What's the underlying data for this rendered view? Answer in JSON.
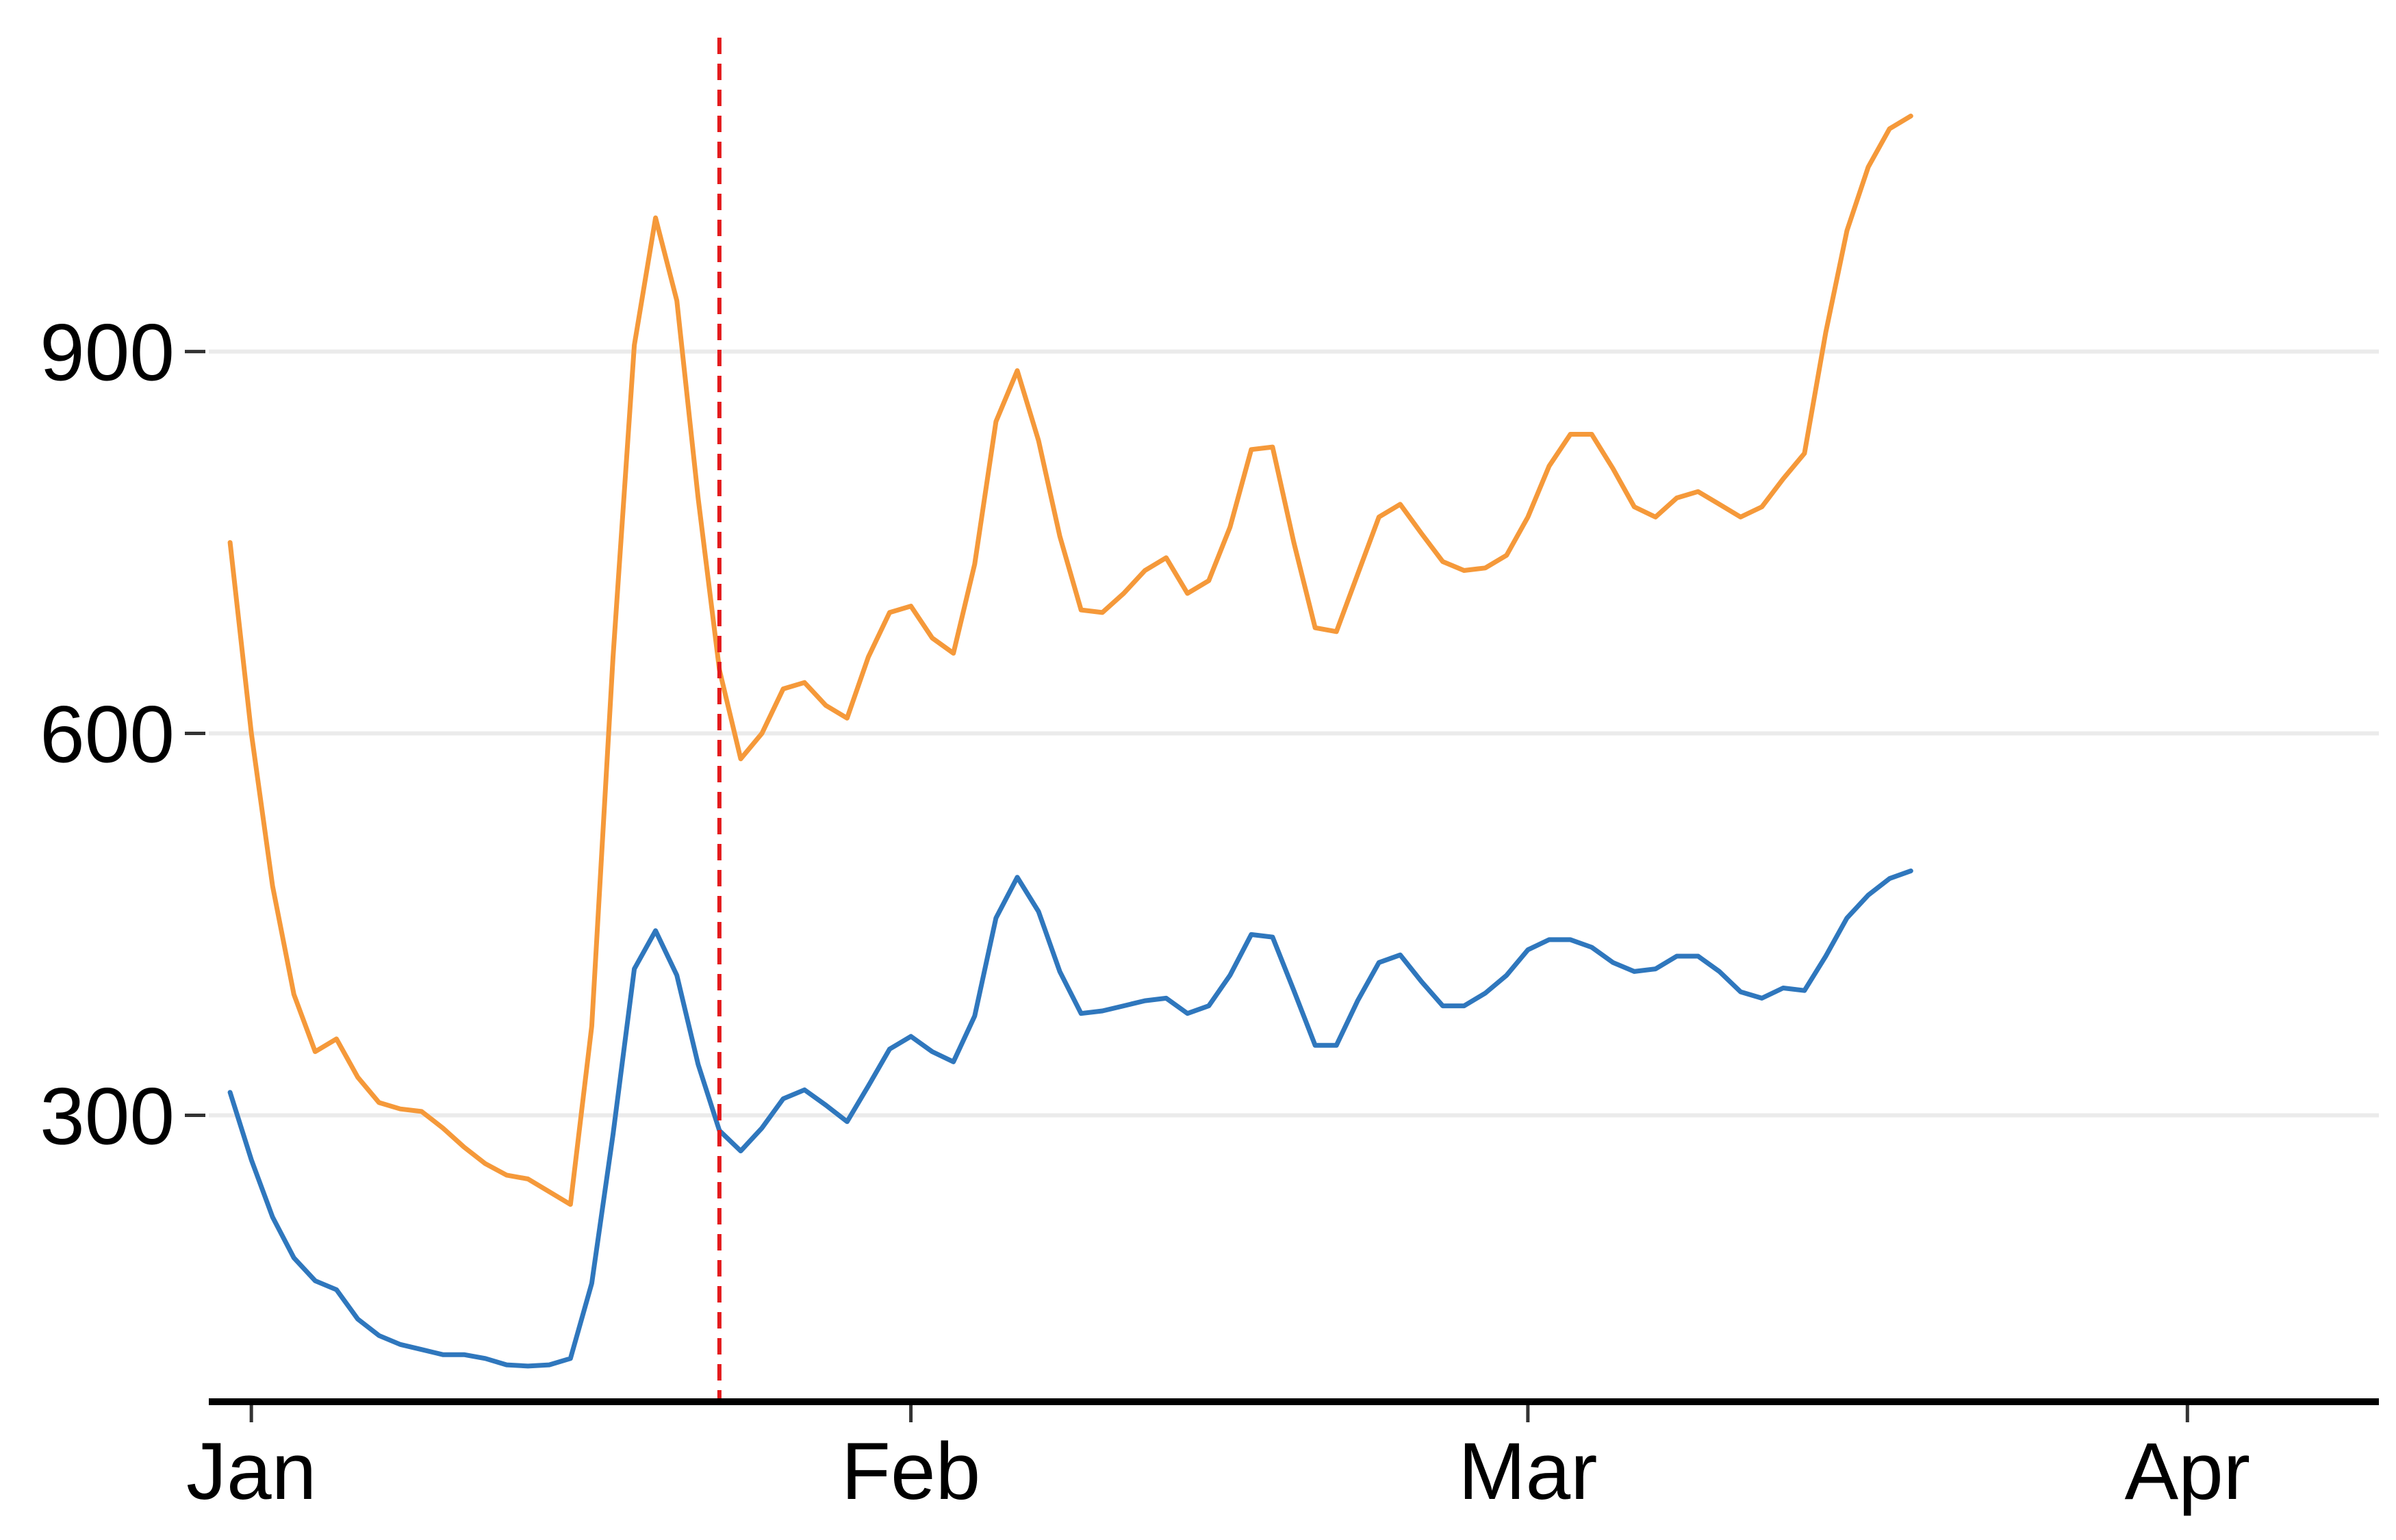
{
  "chart_data": {
    "type": "line",
    "title": "",
    "xlabel": "",
    "ylabel": "",
    "ylim": [
      75,
      1160
    ],
    "yticks": [
      300,
      600,
      900
    ],
    "xticks": [
      {
        "label": "Jan",
        "date": "2020-01-01"
      },
      {
        "label": "Feb",
        "date": "2020-02-01"
      },
      {
        "label": "Mar",
        "date": "2020-03-01"
      },
      {
        "label": "Apr",
        "date": "2020-04-01"
      }
    ],
    "xlim": [
      "2019-12-30",
      "2020-04-10"
    ],
    "grid": "horizontal",
    "legend": "none",
    "vline": {
      "date": "2020-01-23",
      "color": "#e31a1c",
      "style": "dashed"
    },
    "series": [
      {
        "color": "#f5993a",
        "points": [
          [
            "2019-12-31",
            750
          ],
          [
            "2020-01-01",
            600
          ],
          [
            "2020-01-02",
            480
          ],
          [
            "2020-01-03",
            395
          ],
          [
            "2020-01-04",
            350
          ],
          [
            "2020-01-05",
            360
          ],
          [
            "2020-01-06",
            330
          ],
          [
            "2020-01-07",
            310
          ],
          [
            "2020-01-08",
            305
          ],
          [
            "2020-01-09",
            303
          ],
          [
            "2020-01-10",
            290
          ],
          [
            "2020-01-11",
            275
          ],
          [
            "2020-01-12",
            262
          ],
          [
            "2020-01-13",
            253
          ],
          [
            "2020-01-14",
            250
          ],
          [
            "2020-01-15",
            240
          ],
          [
            "2020-01-16",
            230
          ],
          [
            "2020-01-17",
            370
          ],
          [
            "2020-01-18",
            660
          ],
          [
            "2020-01-19",
            905
          ],
          [
            "2020-01-20",
            1005
          ],
          [
            "2020-01-21",
            940
          ],
          [
            "2020-01-22",
            785
          ],
          [
            "2020-01-23",
            650
          ],
          [
            "2020-01-24",
            580
          ],
          [
            "2020-01-25",
            600
          ],
          [
            "2020-01-26",
            635
          ],
          [
            "2020-01-27",
            640
          ],
          [
            "2020-01-28",
            622
          ],
          [
            "2020-01-29",
            612
          ],
          [
            "2020-01-30",
            660
          ],
          [
            "2020-01-31",
            695
          ],
          [
            "2020-02-01",
            700
          ],
          [
            "2020-02-02",
            675
          ],
          [
            "2020-02-03",
            663
          ],
          [
            "2020-02-04",
            733
          ],
          [
            "2020-02-05",
            845
          ],
          [
            "2020-02-06",
            885
          ],
          [
            "2020-02-07",
            830
          ],
          [
            "2020-02-08",
            755
          ],
          [
            "2020-02-09",
            697
          ],
          [
            "2020-02-10",
            695
          ],
          [
            "2020-02-11",
            710
          ],
          [
            "2020-02-12",
            728
          ],
          [
            "2020-02-13",
            738
          ],
          [
            "2020-02-14",
            710
          ],
          [
            "2020-02-15",
            720
          ],
          [
            "2020-02-16",
            762
          ],
          [
            "2020-02-17",
            823
          ],
          [
            "2020-02-18",
            825
          ],
          [
            "2020-02-19",
            750
          ],
          [
            "2020-02-20",
            683
          ],
          [
            "2020-02-21",
            680
          ],
          [
            "2020-02-22",
            725
          ],
          [
            "2020-02-23",
            770
          ],
          [
            "2020-02-24",
            780
          ],
          [
            "2020-02-25",
            757
          ],
          [
            "2020-02-26",
            735
          ],
          [
            "2020-02-27",
            728
          ],
          [
            "2020-02-28",
            730
          ],
          [
            "2020-02-29",
            740
          ],
          [
            "2020-03-01",
            770
          ],
          [
            "2020-03-02",
            810
          ],
          [
            "2020-03-03",
            835
          ],
          [
            "2020-03-04",
            835
          ],
          [
            "2020-03-05",
            808
          ],
          [
            "2020-03-06",
            778
          ],
          [
            "2020-03-07",
            770
          ],
          [
            "2020-03-08",
            785
          ],
          [
            "2020-03-09",
            790
          ],
          [
            "2020-03-10",
            780
          ],
          [
            "2020-03-11",
            770
          ],
          [
            "2020-03-12",
            778
          ],
          [
            "2020-03-13",
            800
          ],
          [
            "2020-03-14",
            820
          ],
          [
            "2020-03-15",
            915
          ],
          [
            "2020-03-16",
            995
          ],
          [
            "2020-03-17",
            1045
          ],
          [
            "2020-03-18",
            1075
          ],
          [
            "2020-03-19",
            1085
          ]
        ]
      },
      {
        "color": "#2f77bd",
        "points": [
          [
            "2019-12-31",
            318
          ],
          [
            "2020-01-01",
            265
          ],
          [
            "2020-01-02",
            220
          ],
          [
            "2020-01-03",
            188
          ],
          [
            "2020-01-04",
            170
          ],
          [
            "2020-01-05",
            163
          ],
          [
            "2020-01-06",
            140
          ],
          [
            "2020-01-07",
            127
          ],
          [
            "2020-01-08",
            120
          ],
          [
            "2020-01-09",
            116
          ],
          [
            "2020-01-10",
            112
          ],
          [
            "2020-01-11",
            112
          ],
          [
            "2020-01-12",
            109
          ],
          [
            "2020-01-13",
            104
          ],
          [
            "2020-01-14",
            103
          ],
          [
            "2020-01-15",
            104
          ],
          [
            "2020-01-16",
            109
          ],
          [
            "2020-01-17",
            168
          ],
          [
            "2020-01-18",
            285
          ],
          [
            "2020-01-19",
            415
          ],
          [
            "2020-01-20",
            445
          ],
          [
            "2020-01-21",
            410
          ],
          [
            "2020-01-22",
            340
          ],
          [
            "2020-01-23",
            288
          ],
          [
            "2020-01-24",
            272
          ],
          [
            "2020-01-25",
            290
          ],
          [
            "2020-01-26",
            313
          ],
          [
            "2020-01-27",
            320
          ],
          [
            "2020-01-28",
            308
          ],
          [
            "2020-01-29",
            295
          ],
          [
            "2020-01-30",
            323
          ],
          [
            "2020-01-31",
            352
          ],
          [
            "2020-02-01",
            362
          ],
          [
            "2020-02-02",
            350
          ],
          [
            "2020-02-03",
            342
          ],
          [
            "2020-02-04",
            378
          ],
          [
            "2020-02-05",
            455
          ],
          [
            "2020-02-06",
            487
          ],
          [
            "2020-02-07",
            460
          ],
          [
            "2020-02-08",
            413
          ],
          [
            "2020-02-09",
            380
          ],
          [
            "2020-02-10",
            382
          ],
          [
            "2020-02-11",
            386
          ],
          [
            "2020-02-12",
            390
          ],
          [
            "2020-02-13",
            392
          ],
          [
            "2020-02-14",
            380
          ],
          [
            "2020-02-15",
            386
          ],
          [
            "2020-02-16",
            410
          ],
          [
            "2020-02-17",
            442
          ],
          [
            "2020-02-18",
            440
          ],
          [
            "2020-02-19",
            398
          ],
          [
            "2020-02-20",
            355
          ],
          [
            "2020-02-21",
            355
          ],
          [
            "2020-02-22",
            390
          ],
          [
            "2020-02-23",
            420
          ],
          [
            "2020-02-24",
            426
          ],
          [
            "2020-02-25",
            405
          ],
          [
            "2020-02-26",
            386
          ],
          [
            "2020-02-27",
            386
          ],
          [
            "2020-02-28",
            396
          ],
          [
            "2020-02-29",
            410
          ],
          [
            "2020-03-01",
            430
          ],
          [
            "2020-03-02",
            438
          ],
          [
            "2020-03-03",
            438
          ],
          [
            "2020-03-04",
            432
          ],
          [
            "2020-03-05",
            420
          ],
          [
            "2020-03-06",
            413
          ],
          [
            "2020-03-07",
            415
          ],
          [
            "2020-03-08",
            425
          ],
          [
            "2020-03-09",
            425
          ],
          [
            "2020-03-10",
            413
          ],
          [
            "2020-03-11",
            397
          ],
          [
            "2020-03-12",
            392
          ],
          [
            "2020-03-13",
            400
          ],
          [
            "2020-03-14",
            398
          ],
          [
            "2020-03-15",
            425
          ],
          [
            "2020-03-16",
            455
          ],
          [
            "2020-03-17",
            473
          ],
          [
            "2020-03-18",
            486
          ],
          [
            "2020-03-19",
            492
          ]
        ]
      }
    ]
  }
}
